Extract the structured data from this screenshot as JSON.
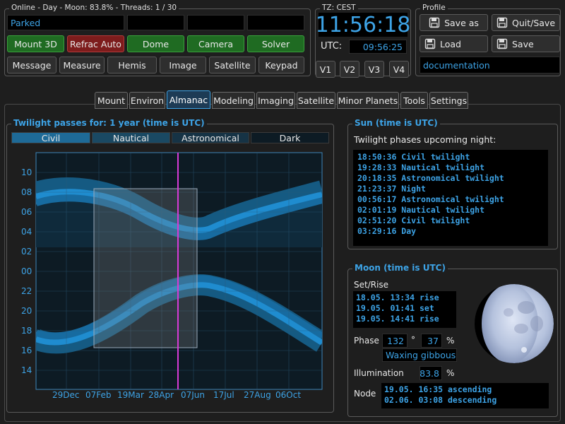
{
  "status": {
    "title": "Online - Day - Moon: 83.8% - Threads: 1 / 30",
    "park_state": "Parked",
    "buttons_row1": [
      "Mount 3D",
      "Refrac Auto",
      "Dome",
      "Camera",
      "Solver"
    ],
    "buttons_row2": [
      "Message",
      "Measure",
      "Hemis",
      "Image",
      "Satellite",
      "Keypad"
    ]
  },
  "clock": {
    "title": "TZ: CEST",
    "local_time": "11:56:18",
    "utc_label": "UTC:",
    "utc_time": "09:56:25",
    "views": [
      "V1",
      "V2",
      "V3",
      "V4"
    ]
  },
  "profile": {
    "title": "Profile",
    "save_as": "Save as",
    "quit_save": "Quit/Save",
    "load": "Load",
    "save": "Save",
    "name": "documentation"
  },
  "tabs": [
    "Mount",
    "Environ",
    "Almanac",
    "Modeling",
    "Imaging",
    "Satellite",
    "Minor Planets",
    "Tools",
    "Settings"
  ],
  "active_tab": "Almanac",
  "twilight": {
    "title": "Twilight passes for: 1 year (time is UTC)",
    "segments": [
      "Civil",
      "Nautical",
      "Astronomical",
      "Dark"
    ],
    "segment_colors": [
      "#1e6a97",
      "#1a4963",
      "#163345",
      "#0d1b24"
    ],
    "y_ticks": [
      "10",
      "08",
      "06",
      "04",
      "02",
      "00",
      "22",
      "20",
      "18",
      "16",
      "14"
    ],
    "x_ticks": [
      "29Dec",
      "07Feb",
      "19Mar",
      "28Apr",
      "07Jun",
      "17Jul",
      "27Aug",
      "06Oct"
    ]
  },
  "sun": {
    "title": "Sun (time is UTC)",
    "subtitle": "Twilight phases upcoming night:",
    "phases": [
      "18:50:36 Civil twilight",
      "19:28:33 Nautical twilight",
      "20:18:35 Astronomical twilight",
      "21:23:37 Night",
      "00:56:17 Astronomical twilight",
      "02:01:19 Nautical twilight",
      "02:51:20 Civil twilight",
      "03:29:16 Day"
    ]
  },
  "moon": {
    "title": "Moon (time is UTC)",
    "set_rise_label": "Set/Rise",
    "set_rise": [
      "18.05. 13:34 rise",
      "19.05. 01:41 set",
      "19.05. 14:41 rise"
    ],
    "phase_label": "Phase",
    "phase_deg": "132",
    "deg_unit": "°",
    "phase_pct": "37",
    "pct_unit": "%",
    "phase_name": "Waxing gibbous",
    "illum_label": "Illumination",
    "illum": "83.8",
    "illum_unit": "%",
    "node_label": "Node",
    "nodes": [
      "19.05. 16:35 ascending",
      "02.06. 03:08 descending"
    ]
  }
}
